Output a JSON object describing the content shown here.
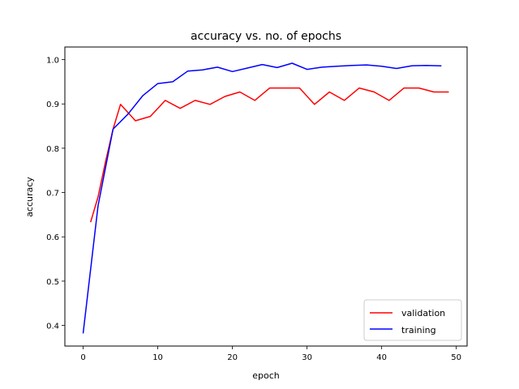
{
  "chart_data": {
    "type": "line",
    "title": "accuracy vs. no. of epochs",
    "xlabel": "epoch",
    "ylabel": "accuracy",
    "xlim": [
      -2.45,
      51.45
    ],
    "ylim": [
      0.3535,
      1.0285
    ],
    "xticks": [
      0,
      10,
      20,
      30,
      40,
      50
    ],
    "yticks": [
      0.4,
      0.5,
      0.6,
      0.7,
      0.8,
      0.9,
      1.0
    ],
    "ytick_labels": [
      "0.4",
      "0.5",
      "0.6",
      "0.7",
      "0.8",
      "0.9",
      "1.0"
    ],
    "grid": false,
    "legend_position": "lower-right",
    "series": [
      {
        "name": "validation",
        "color": "#ff0000",
        "x": [
          1,
          2,
          3,
          4,
          5,
          7,
          9,
          11,
          13,
          15,
          17,
          19,
          21,
          23,
          25,
          27,
          29,
          31,
          33,
          35,
          37,
          39,
          41,
          43,
          45,
          47,
          49
        ],
        "y": [
          0.633,
          0.69,
          0.77,
          0.843,
          0.899,
          0.862,
          0.872,
          0.908,
          0.89,
          0.908,
          0.899,
          0.917,
          0.927,
          0.908,
          0.936,
          0.936,
          0.936,
          0.899,
          0.927,
          0.908,
          0.936,
          0.927,
          0.908,
          0.936,
          0.936,
          0.927,
          0.927
        ]
      },
      {
        "name": "training",
        "color": "#0000ff",
        "x": [
          0,
          2,
          4,
          6,
          8,
          10,
          12,
          14,
          16,
          18,
          20,
          22,
          24,
          26,
          28,
          30,
          32,
          34,
          36,
          38,
          40,
          42,
          44,
          46,
          48
        ],
        "y": [
          0.382,
          0.67,
          0.843,
          0.877,
          0.919,
          0.946,
          0.95,
          0.974,
          0.977,
          0.983,
          0.973,
          0.981,
          0.989,
          0.982,
          0.992,
          0.978,
          0.983,
          0.985,
          0.987,
          0.988,
          0.985,
          0.98,
          0.986,
          0.987,
          0.986
        ]
      }
    ]
  }
}
